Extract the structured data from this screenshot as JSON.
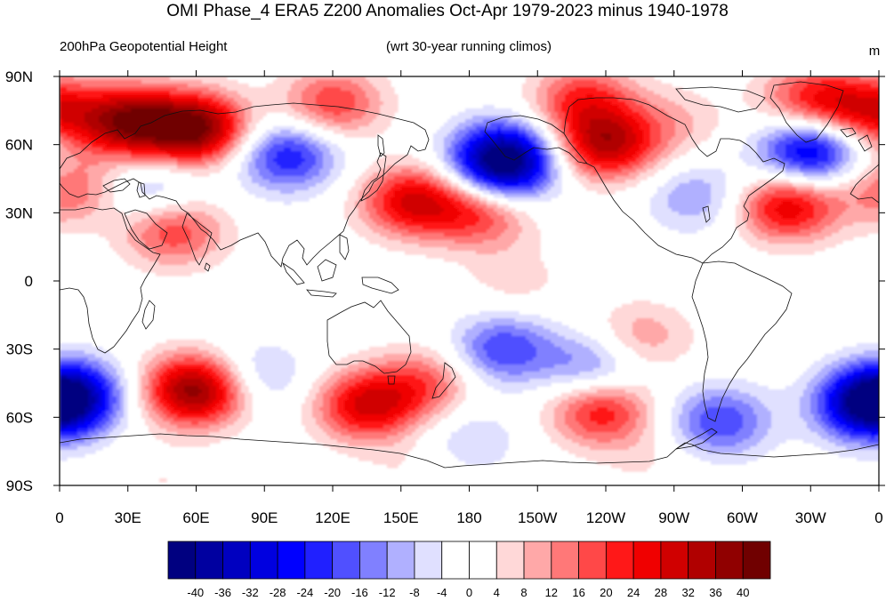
{
  "title": "OMI Phase_4 ERA5 Z200 Anomalies Oct-Apr 1979-2023 minus 1940-1978",
  "left_subtitle": "200hPa Geopotential Height",
  "center_subtitle": "(wrt 30-year running climos)",
  "units": "m",
  "lat_ticks": [
    "90N",
    "60N",
    "30N",
    "0",
    "30S",
    "60S",
    "90S"
  ],
  "lon_ticks": [
    "0",
    "30E",
    "60E",
    "90E",
    "120E",
    "150E",
    "180",
    "150W",
    "120W",
    "90W",
    "60W",
    "30W",
    "0"
  ],
  "colorbar": {
    "labels": [
      "-40",
      "-36",
      "-32",
      "-28",
      "-24",
      "-20",
      "-16",
      "-12",
      "-8",
      "-4",
      "0",
      "4",
      "8",
      "12",
      "16",
      "20",
      "24",
      "28",
      "32",
      "36",
      "40"
    ],
    "colors": [
      "#000080",
      "#0000a0",
      "#0000c0",
      "#0000e0",
      "#0000ff",
      "#2020ff",
      "#5050ff",
      "#8080ff",
      "#b0b0ff",
      "#e0e0ff",
      "#ffffff",
      "#ffffff",
      "#ffd8d8",
      "#ffa8a8",
      "#ff7878",
      "#ff4848",
      "#ff1818",
      "#f00000",
      "#d00000",
      "#b00000",
      "#900000",
      "#700000"
    ]
  },
  "anomaly_centers": [
    {
      "lon": 30,
      "lat": 70,
      "value": 36
    },
    {
      "lon": 60,
      "lat": 67,
      "value": 40
    },
    {
      "lon": 120,
      "lat": 78,
      "value": 20
    },
    {
      "lon": 230,
      "lat": 80,
      "value": 20
    },
    {
      "lon": 240,
      "lat": 60,
      "value": 32
    },
    {
      "lon": 330,
      "lat": 80,
      "value": 20
    },
    {
      "lon": 355,
      "lat": 75,
      "value": 24
    },
    {
      "lon": 270,
      "lat": 70,
      "value": 8
    },
    {
      "lon": 100,
      "lat": 55,
      "value": -24
    },
    {
      "lon": 195,
      "lat": 55,
      "value": -32
    },
    {
      "lon": 195,
      "lat": 48,
      "value": -20
    },
    {
      "lon": 330,
      "lat": 57,
      "value": -32
    },
    {
      "lon": 280,
      "lat": 37,
      "value": -12
    },
    {
      "lon": 40,
      "lat": 40,
      "value": -12
    },
    {
      "lon": 5,
      "lat": 40,
      "value": 16
    },
    {
      "lon": 155,
      "lat": 35,
      "value": 28
    },
    {
      "lon": 185,
      "lat": 30,
      "value": 20
    },
    {
      "lon": 50,
      "lat": 22,
      "value": 20
    },
    {
      "lon": 320,
      "lat": 33,
      "value": 28
    },
    {
      "lon": 200,
      "lat": 0,
      "value": 6
    },
    {
      "lon": 255,
      "lat": -25,
      "value": 12
    },
    {
      "lon": 195,
      "lat": -30,
      "value": -20
    },
    {
      "lon": 235,
      "lat": -38,
      "value": -16
    },
    {
      "lon": 85,
      "lat": -42,
      "value": -12
    },
    {
      "lon": 5,
      "lat": -50,
      "value": -28
    },
    {
      "lon": 60,
      "lat": -48,
      "value": 40
    },
    {
      "lon": 135,
      "lat": -55,
      "value": 28
    },
    {
      "lon": 160,
      "lat": -45,
      "value": 16
    },
    {
      "lon": 238,
      "lat": -57,
      "value": 24
    },
    {
      "lon": 355,
      "lat": -55,
      "value": -32
    },
    {
      "lon": 290,
      "lat": -62,
      "value": -20
    },
    {
      "lon": 180,
      "lat": -70,
      "value": -8
    },
    {
      "lon": 45,
      "lat": -88,
      "value": 4
    },
    {
      "lon": 155,
      "lat": -85,
      "value": 4
    },
    {
      "lon": 260,
      "lat": -80,
      "value": 4
    }
  ]
}
